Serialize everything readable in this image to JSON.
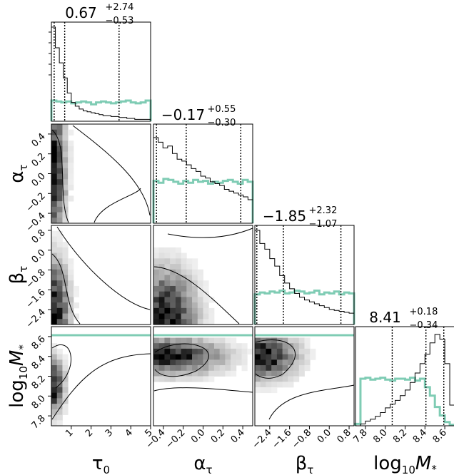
{
  "chart_data": {
    "type": "corner",
    "parameters": [
      {
        "label": "τ0",
        "label_sub": "0",
        "label_main": "τ",
        "range": [
          0,
          5
        ],
        "ticks": [
          1,
          2,
          3,
          4,
          5
        ],
        "summary": {
          "median": "0.67",
          "plus": "+2.74",
          "minus": "−0.53"
        }
      },
      {
        "label": "ατ",
        "label_sub": "τ",
        "label_main": "α",
        "range": [
          -0.5,
          0.5
        ],
        "ticks": [
          -0.4,
          -0.2,
          0.0,
          0.2,
          0.4
        ],
        "summary": {
          "median": "−0.17",
          "plus": "+0.55",
          "minus": "−0.30"
        }
      },
      {
        "label": "βτ",
        "label_sub": "τ",
        "label_main": "β",
        "range": [
          -3.0,
          1.0
        ],
        "ticks": [
          -2.4,
          -1.6,
          -0.8,
          0.0,
          0.8
        ],
        "summary": {
          "median": "−1.85",
          "plus": "+2.32",
          "minus": "−1.07"
        }
      },
      {
        "label": "log10M*",
        "label_sub": "10",
        "label_main": "log",
        "label_tail": "M",
        "label_star": "*",
        "range": [
          7.7,
          8.7
        ],
        "ticks": [
          7.8,
          8.0,
          8.2,
          8.4,
          8.6
        ],
        "summary": {
          "median": "8.41",
          "plus": "+0.18",
          "minus": "−0.34"
        }
      }
    ],
    "tick_labels_x": {
      "p0": [
        "1",
        "2",
        "3",
        "4",
        "5"
      ],
      "p1": [
        "−0.4",
        "−0.2",
        "0.0",
        "0.2",
        "0.4"
      ],
      "p2": [
        "−2.4",
        "−1.6",
        "−0.8",
        "0.0",
        "0.8"
      ],
      "p3": [
        "7.8",
        "8.0",
        "8.2",
        "8.4",
        "8.6"
      ]
    },
    "tick_labels_y": {
      "p1": [
        "−0.4",
        "−0.2",
        "0.0",
        "0.2",
        "0.4"
      ],
      "p2": [
        "−2.4",
        "−1.6",
        "−0.8",
        "0.0",
        "0.8"
      ],
      "p3": [
        "7.8",
        "8.0",
        "8.2",
        "8.4",
        "8.6"
      ]
    },
    "quantile_lines": {
      "p0": [
        0.14,
        0.67,
        3.41
      ],
      "p1": [
        -0.47,
        -0.17,
        0.38
      ],
      "p2": [
        -2.92,
        -1.85,
        0.47
      ],
      "p3": [
        8.07,
        8.41,
        8.59
      ]
    },
    "posterior_hist": {
      "p0": [
        1.0,
        0.78,
        0.62,
        0.46,
        0.3,
        0.2,
        0.16,
        0.13,
        0.11,
        0.1,
        0.09,
        0.08,
        0.07,
        0.06,
        0.06,
        0.05,
        0.05,
        0.04,
        0.04,
        0.03,
        0.03,
        0.02,
        0.02,
        0.02,
        0.02
      ],
      "p1": [
        0.91,
        0.86,
        0.8,
        0.82,
        0.74,
        0.68,
        0.66,
        0.62,
        0.58,
        0.55,
        0.5,
        0.48,
        0.44,
        0.42,
        0.4,
        0.36,
        0.34,
        0.32,
        0.3,
        0.28,
        0.25
      ],
      "p2": [
        1.0,
        0.86,
        0.8,
        0.7,
        0.62,
        0.52,
        0.44,
        0.38,
        0.33,
        0.29,
        0.26,
        0.24,
        0.22,
        0.2,
        0.18,
        0.16,
        0.15,
        0.14,
        0.13,
        0.12
      ],
      "p3": [
        0.0,
        0.02,
        0.05,
        0.07,
        0.1,
        0.14,
        0.19,
        0.23,
        0.27,
        0.32,
        0.38,
        0.46,
        0.56,
        0.66,
        0.76,
        0.88,
        0.97,
        0.92,
        0.66,
        0.22
      ]
    },
    "prior_hist": {
      "p0": [
        0.22,
        0.21,
        0.2,
        0.21,
        0.19,
        0.2,
        0.21,
        0.2,
        0.18,
        0.2,
        0.21,
        0.2,
        0.19,
        0.2,
        0.21,
        0.22,
        0.2,
        0.19,
        0.2,
        0.22
      ],
      "p1": [
        0.45,
        0.43,
        0.47,
        0.46,
        0.44,
        0.42,
        0.45,
        0.43,
        0.46,
        0.44,
        0.45,
        0.42,
        0.44,
        0.43,
        0.45,
        0.46,
        0.44,
        0.42,
        0.46,
        0.44
      ],
      "p2": [
        0.32,
        0.34,
        0.33,
        0.35,
        0.34,
        0.36,
        0.33,
        0.34,
        0.36,
        0.35,
        0.33,
        0.34,
        0.36,
        0.32,
        0.34,
        0.33,
        0.35,
        0.32,
        0.34,
        0.33
      ],
      "p3": [
        0.02,
        0.5,
        0.51,
        0.49,
        0.5,
        0.51,
        0.49,
        0.48,
        0.5,
        0.5,
        0.49,
        0.51,
        0.48,
        0.5,
        0.41,
        0.32,
        0.2,
        0.11,
        0.04,
        0.01
      ]
    },
    "colors": {
      "posterior": "#000000",
      "prior": "#7fccb4",
      "density_dark": "#000000",
      "contour": "#000000"
    },
    "grid": false,
    "legend": "none"
  }
}
